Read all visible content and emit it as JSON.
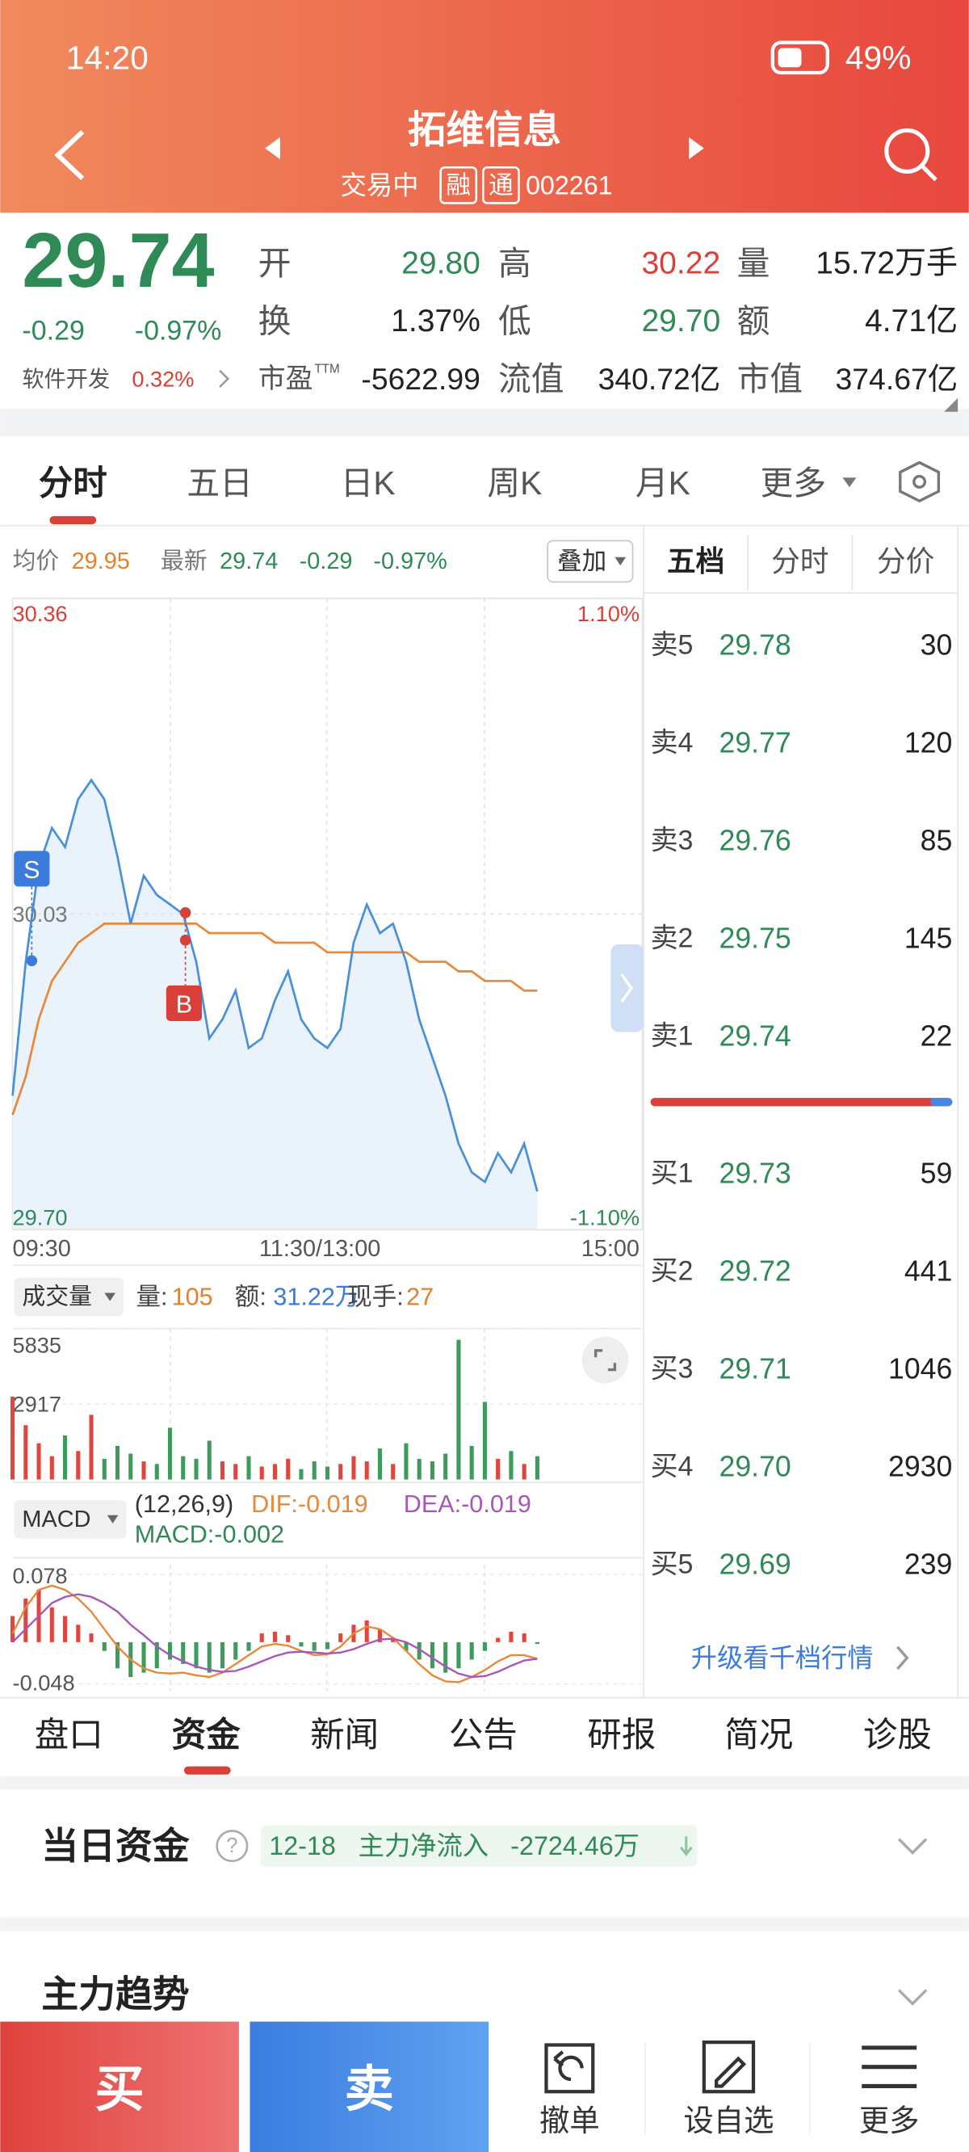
{
  "status_bar": {
    "time": "14:20",
    "battery": "49%"
  },
  "header": {
    "title": "拓维信息",
    "status": "交易中",
    "badges": [
      "融",
      "通"
    ],
    "code": "002261"
  },
  "quote": {
    "price": "29.74",
    "change": "-0.29",
    "change_pct": "-0.97%",
    "sector": "软件开发",
    "sector_change": "0.32%",
    "fields": [
      {
        "label": "开",
        "value": "29.80"
      },
      {
        "label": "高",
        "value": "30.22"
      },
      {
        "label": "量",
        "value": "15.72万手"
      },
      {
        "label": "换",
        "value": "1.37%"
      },
      {
        "label": "低",
        "value": "29.70"
      },
      {
        "label": "额",
        "value": "4.71亿"
      },
      {
        "label": "市盈",
        "sup": "TTM",
        "value": "-5622.99"
      },
      {
        "label": "流值",
        "value": "340.72亿"
      },
      {
        "label": "市值",
        "value": "374.67亿"
      }
    ]
  },
  "chart_tabs": [
    "分时",
    "五日",
    "日K",
    "周K",
    "月K",
    "更多"
  ],
  "intraday": {
    "avg_label": "均价",
    "avg": "29.95",
    "latest_label": "最新",
    "latest": "29.74",
    "change": "-0.29",
    "change_pct": "-0.97%",
    "overlay_button": "叠加",
    "chart": {
      "type": "line",
      "ylim": [
        29.7,
        30.36
      ],
      "yticks": [
        {
          "value": 29.7,
          "label": "29.70"
        },
        30.03,
        30.36
      ],
      "y2lim": [
        -1.1,
        1.1
      ],
      "y2ticks": [
        {
          "value": -1.1,
          "label": "-1.10%"
        },
        {
          "value": 1.1,
          "label": "1.10%"
        }
      ],
      "xlabels": [
        "09:30",
        "11:30/13:00",
        "15:00"
      ],
      "markers": [
        "S",
        "B"
      ],
      "price_color": "#4a90d9",
      "avg_color": "#e8883a",
      "price": [
        29.84,
        29.98,
        30.08,
        30.12,
        30.1,
        30.15,
        30.17,
        30.15,
        30.09,
        30.02,
        30.07,
        30.05,
        30.04,
        30.03,
        29.98,
        29.9,
        29.92,
        29.95,
        29.89,
        29.9,
        29.94,
        29.97,
        29.92,
        29.9,
        29.89,
        29.91,
        30.0,
        30.04,
        30.01,
        30.02,
        29.98,
        29.92,
        29.88,
        29.84,
        29.79,
        29.76,
        29.75,
        29.78,
        29.76,
        29.79,
        29.74
      ],
      "avg": [
        29.82,
        29.86,
        29.92,
        29.96,
        29.98,
        30.0,
        30.01,
        30.02,
        30.02,
        30.02,
        30.02,
        30.02,
        30.02,
        30.02,
        30.02,
        30.01,
        30.01,
        30.01,
        30.01,
        30.01,
        30.0,
        30.0,
        30.0,
        30.0,
        29.99,
        29.99,
        29.99,
        29.99,
        29.99,
        29.99,
        29.99,
        29.98,
        29.98,
        29.98,
        29.97,
        29.97,
        29.96,
        29.96,
        29.96,
        29.95,
        29.95
      ]
    }
  },
  "volume": {
    "type": "bar",
    "label": "成交量",
    "ylim": [
      0,
      5835
    ],
    "yticks": [
      2917,
      5835
    ],
    "up_color": "#e0463f",
    "down_color": "#3d9b5c",
    "stats": [
      {
        "label": "量:",
        "value": "105"
      },
      {
        "label": "额:",
        "value": "31.22万"
      },
      {
        "label": "现手:",
        "value": "27"
      }
    ],
    "values": [
      3200,
      2100,
      1400,
      900,
      1700,
      1100,
      2500,
      800,
      1300,
      1000,
      700,
      600,
      2000,
      900,
      800,
      1500,
      700,
      600,
      900,
      500,
      600,
      800,
      400,
      700,
      500,
      600,
      900,
      700,
      1200,
      600,
      1400,
      800,
      700,
      1000,
      5400,
      1300,
      3000,
      800,
      1100,
      600,
      900
    ]
  },
  "macd": {
    "type": "bar",
    "label": "MACD",
    "params": "(12,26,9)",
    "dif_text": "DIF:-0.019",
    "dea_text": "DEA:-0.019",
    "macd_text": "MACD:-0.002",
    "ylim": [
      -0.048,
      0.078
    ],
    "yticks": [
      -0.048,
      0.078
    ],
    "up_color": "#e0463f",
    "down_color": "#3d9b5c",
    "dif_color": "#e8883a",
    "dea_color": "#a857b8",
    "bars": [
      0.03,
      0.05,
      0.06,
      0.04,
      0.03,
      0.02,
      0.01,
      -0.01,
      -0.03,
      -0.04,
      -0.035,
      -0.03,
      -0.02,
      -0.025,
      -0.03,
      -0.035,
      -0.03,
      -0.02,
      -0.01,
      0.01,
      0.012,
      0.008,
      -0.005,
      -0.01,
      -0.008,
      0.01,
      0.02,
      0.025,
      0.015,
      0.005,
      -0.01,
      -0.02,
      -0.03,
      -0.035,
      -0.03,
      -0.02,
      -0.01,
      0.005,
      0.012,
      0.01,
      -0.002
    ],
    "dif": [
      0.01,
      0.04,
      0.06,
      0.065,
      0.06,
      0.05,
      0.035,
      0.015,
      -0.005,
      -0.02,
      -0.03,
      -0.035,
      -0.036,
      -0.035,
      -0.038,
      -0.04,
      -0.035,
      -0.025,
      -0.015,
      -0.005,
      -0.002,
      -0.004,
      -0.01,
      -0.015,
      -0.014,
      -0.005,
      0.01,
      0.018,
      0.015,
      0.005,
      -0.01,
      -0.025,
      -0.038,
      -0.045,
      -0.046,
      -0.04,
      -0.032,
      -0.022,
      -0.015,
      -0.015,
      -0.019
    ],
    "dea": [
      0,
      0.015,
      0.03,
      0.045,
      0.052,
      0.055,
      0.052,
      0.045,
      0.035,
      0.02,
      0.008,
      -0.005,
      -0.015,
      -0.022,
      -0.028,
      -0.032,
      -0.034,
      -0.033,
      -0.028,
      -0.022,
      -0.016,
      -0.012,
      -0.011,
      -0.012,
      -0.013,
      -0.012,
      -0.008,
      -0.002,
      0.003,
      0.004,
      0,
      -0.008,
      -0.018,
      -0.028,
      -0.036,
      -0.04,
      -0.039,
      -0.034,
      -0.027,
      -0.021,
      -0.019
    ]
  },
  "order_book": {
    "tabs": [
      "五档",
      "分时",
      "分价"
    ],
    "asks": [
      {
        "label": "卖5",
        "price": "29.78",
        "qty": "30"
      },
      {
        "label": "卖4",
        "price": "29.77",
        "qty": "120"
      },
      {
        "label": "卖3",
        "price": "29.76",
        "qty": "85"
      },
      {
        "label": "卖2",
        "price": "29.75",
        "qty": "145"
      },
      {
        "label": "卖1",
        "price": "29.74",
        "qty": "22"
      }
    ],
    "bids": [
      {
        "label": "买1",
        "price": "29.73",
        "qty": "59"
      },
      {
        "label": "买2",
        "price": "29.72",
        "qty": "441"
      },
      {
        "label": "买3",
        "price": "29.71",
        "qty": "1046"
      },
      {
        "label": "买4",
        "price": "29.70",
        "qty": "2930"
      },
      {
        "label": "买5",
        "price": "29.69",
        "qty": "239"
      }
    ],
    "upgrade": "升级看千档行情"
  },
  "bottom_tabs": [
    "盘口",
    "资金",
    "新闻",
    "公告",
    "研报",
    "简况",
    "诊股"
  ],
  "fund_card": {
    "title": "当日资金",
    "help": "?",
    "date": "12-18",
    "label": "主力净流入",
    "value": "-2724.46万"
  },
  "trend_title": "主力趋势",
  "action_bar": {
    "buy": "买",
    "sell": "卖",
    "items": [
      "撤单",
      "设自选",
      "更多"
    ]
  }
}
